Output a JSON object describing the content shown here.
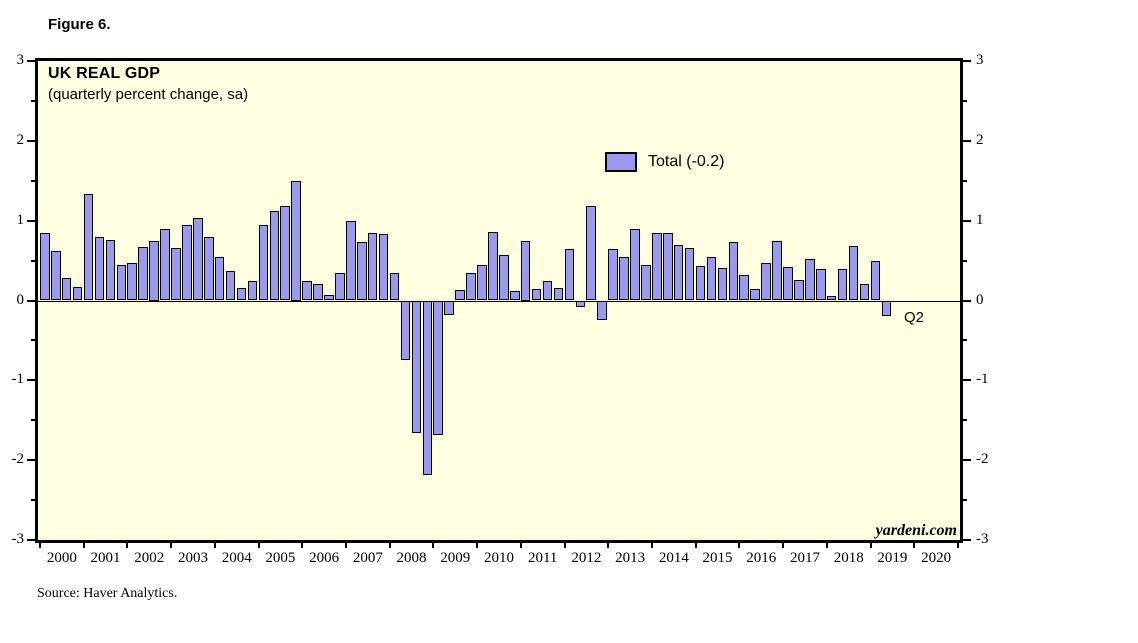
{
  "figure_label": "Figure 6.",
  "chart": {
    "title": "UK REAL GDP",
    "subtitle": "(quarterly percent change, sa)",
    "legend": {
      "label": "Total (-0.2)"
    },
    "annotations": {
      "last_bar_label": "Q2",
      "watermark": "yardeni.com"
    }
  },
  "source_note": "Source: Haver Analytics.",
  "colors": {
    "plot_bg": "#ffffe2",
    "bar_fill": "#9999ee",
    "bar_border": "#000000",
    "frame": "#000000"
  },
  "chart_data": {
    "type": "bar",
    "frequency": "quarterly",
    "x_start": "2000Q1",
    "x_end": "2019Q2",
    "series": [
      {
        "name": "Total",
        "latest_value": -0.2,
        "values": [
          0.84,
          0.62,
          0.28,
          0.17,
          1.33,
          0.8,
          0.76,
          0.45,
          0.47,
          0.67,
          0.75,
          0.9,
          0.66,
          0.95,
          1.03,
          0.8,
          0.55,
          0.37,
          0.16,
          0.24,
          0.95,
          1.12,
          1.18,
          1.5,
          0.25,
          0.21,
          0.07,
          0.35,
          0.99,
          0.73,
          0.85,
          0.83,
          0.34,
          -0.74,
          -1.66,
          -2.18,
          -1.68,
          -0.18,
          0.13,
          0.34,
          0.44,
          0.86,
          0.57,
          0.12,
          0.75,
          0.15,
          0.25,
          0.16,
          0.65,
          -0.08,
          1.18,
          -0.25,
          0.64,
          0.55,
          0.9,
          0.45,
          0.84,
          0.84,
          0.7,
          0.66,
          0.43,
          0.55,
          0.41,
          0.73,
          0.32,
          0.14,
          0.47,
          0.74,
          0.42,
          0.26,
          0.52,
          0.4,
          0.06,
          0.39,
          0.68,
          0.21,
          0.5,
          -0.2
        ]
      }
    ],
    "x_year_labels": [
      "2000",
      "2001",
      "2002",
      "2003",
      "2004",
      "2005",
      "2006",
      "2007",
      "2008",
      "2009",
      "2010",
      "2011",
      "2012",
      "2013",
      "2014",
      "2015",
      "2016",
      "2017",
      "2018",
      "2019",
      "2020"
    ],
    "ylim": [
      -3,
      3
    ],
    "y_major_ticks": [
      "3",
      "2",
      "1",
      "0",
      "-1",
      "-2",
      "-3"
    ],
    "y_minor_step": 0.5,
    "y_axis_sides": [
      "left",
      "right"
    ],
    "grid": "zero-line-only",
    "legend_position": "inside-top-center",
    "title": "UK REAL GDP",
    "xlabel": "",
    "ylabel": ""
  }
}
